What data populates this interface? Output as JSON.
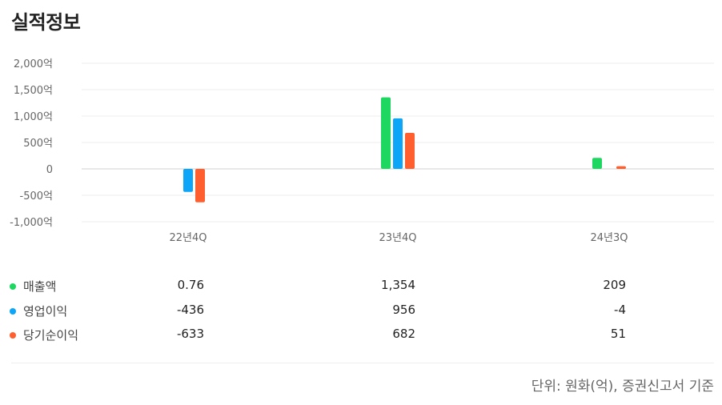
{
  "title": "실적정보",
  "footnote": "단위: 원화(억), 증권신고서 기준",
  "chart_data": {
    "type": "bar",
    "categories": [
      "22년4Q",
      "23년4Q",
      "24년3Q"
    ],
    "series": [
      {
        "name": "매출액",
        "color": "#1ed760",
        "values": [
          0.76,
          1354,
          209
        ],
        "labels": [
          "0.76",
          "1,354",
          "209"
        ]
      },
      {
        "name": "영업이익",
        "color": "#0ca5f8",
        "values": [
          -436,
          956,
          -4
        ],
        "labels": [
          "-436",
          "956",
          "-4"
        ]
      },
      {
        "name": "당기순이익",
        "color": "#ff5f2e",
        "values": [
          -633,
          682,
          51
        ],
        "labels": [
          "-633",
          "682",
          "51"
        ]
      }
    ],
    "yticks": [
      2000,
      1500,
      1000,
      500,
      0,
      -500,
      -1000
    ],
    "ytick_labels": [
      "2,000억",
      "1,500억",
      "1,000억",
      "500억",
      "0",
      "-500억",
      "-1,000억"
    ],
    "ylim": [
      -1000,
      2000
    ],
    "grid": true
  }
}
